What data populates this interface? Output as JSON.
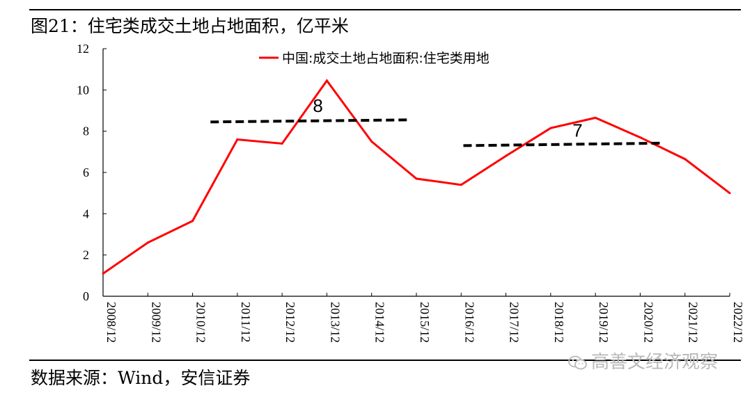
{
  "figure": {
    "title": "图21：住宅类成交土地占地面积，亿平米",
    "source": "数据来源：Wind，安信证券",
    "watermark": "高善文经济观察",
    "watermark_icon": "wechat-icon"
  },
  "chart_data": {
    "type": "line",
    "title": "",
    "xlabel": "",
    "ylabel": "",
    "categories": [
      "2008/12",
      "2009/12",
      "2010/12",
      "2011/12",
      "2012/12",
      "2013/12",
      "2014/12",
      "2015/12",
      "2016/12",
      "2017/12",
      "2018/12",
      "2019/12",
      "2020/12",
      "2021/12",
      "2022/12"
    ],
    "series": [
      {
        "name": "中国:成交土地占地面积:住宅类用地",
        "color": "#ff0000",
        "values": [
          1.1,
          2.6,
          3.65,
          7.6,
          7.4,
          10.45,
          7.5,
          5.7,
          5.4,
          6.8,
          8.15,
          8.65,
          7.7,
          6.65,
          5.0
        ]
      }
    ],
    "ylim": [
      0,
      12
    ],
    "yticks": [
      0,
      2,
      4,
      6,
      8,
      10,
      12
    ],
    "grid": false,
    "legend": "top-center",
    "annotations": [
      {
        "label": "8",
        "type": "dashed-trend",
        "color": "#000000",
        "from": {
          "x": "2011/12",
          "offset": -0.6,
          "y": 8.45
        },
        "to": {
          "x": "2015/12",
          "offset": -0.15,
          "y": 8.55
        },
        "label_at": {
          "x": "2013/12",
          "offset": -0.2,
          "y": 9.2
        }
      },
      {
        "label": "7",
        "type": "dashed-trend",
        "color": "#000000",
        "from": {
          "x": "2017/12",
          "offset": -0.95,
          "y": 7.3
        },
        "to": {
          "x": "2021/12",
          "offset": -0.55,
          "y": 7.42
        },
        "label_at": {
          "x": "2019/12",
          "offset": -0.4,
          "y": 8.0
        }
      }
    ]
  }
}
